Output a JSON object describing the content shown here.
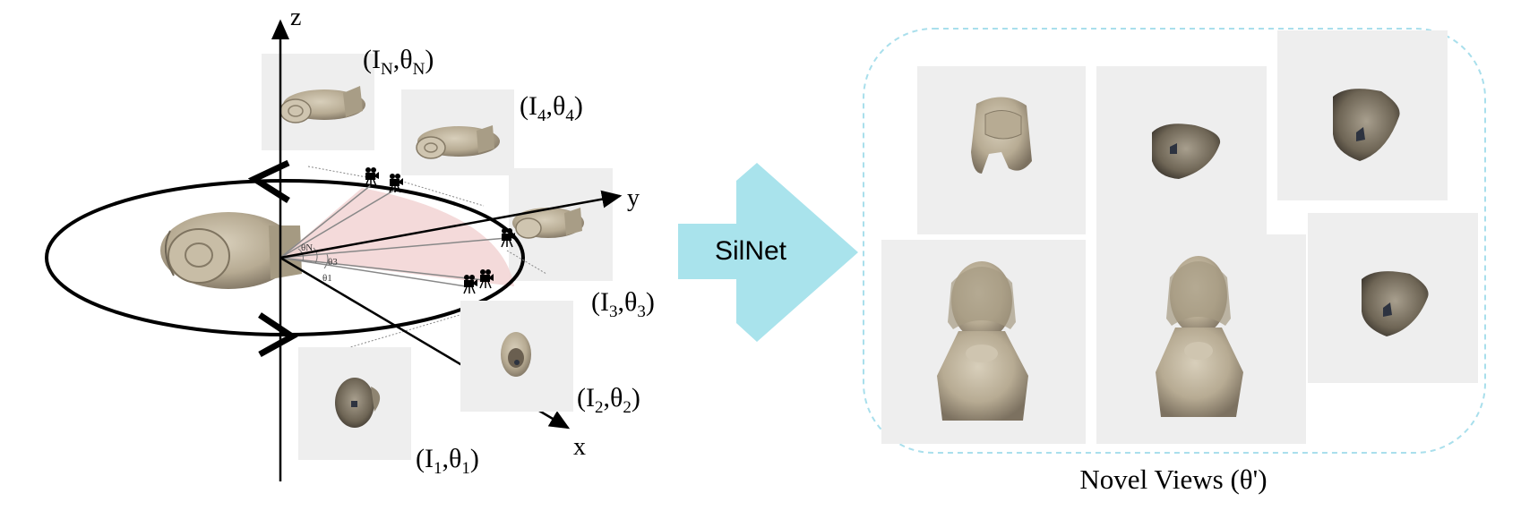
{
  "axes": {
    "z": "z",
    "y": "y",
    "x": "x"
  },
  "inputs": [
    {
      "img": "I",
      "img_sub": "N",
      "ang": "θ",
      "ang_sub": "N"
    },
    {
      "img": "I",
      "img_sub": "4",
      "ang": "θ",
      "ang_sub": "4"
    },
    {
      "img": "I",
      "img_sub": "3",
      "ang": "θ",
      "ang_sub": "3"
    },
    {
      "img": "I",
      "img_sub": "2",
      "ang": "θ",
      "ang_sub": "2"
    },
    {
      "img": "I",
      "img_sub": "1",
      "ang": "θ",
      "ang_sub": "1"
    }
  ],
  "angle_marks": {
    "thetaN": "θN",
    "theta3": "θ3",
    "theta1": "θ1"
  },
  "network": {
    "label": "SilNet",
    "color": "#a9e3ec"
  },
  "output": {
    "caption": "Novel Views (θ')",
    "border_color": "#a9dfec"
  },
  "colors": {
    "sector": "#f3d6d6",
    "tile": "#eeeeee",
    "statue": "#b9ad96",
    "statue_dark": "#6f6556"
  }
}
